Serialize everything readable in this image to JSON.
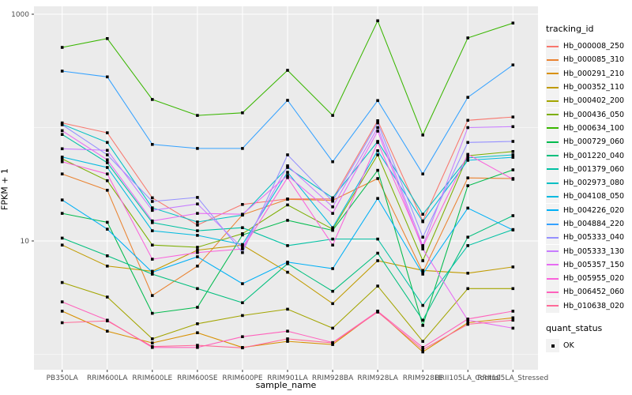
{
  "chart_data": {
    "type": "line",
    "title": "",
    "xlabel": "sample_name",
    "ylabel": "FPKM + 1",
    "y_scale": "log10",
    "ylim": [
      1,
      1000
    ],
    "y_ticks": [
      {
        "label": "1000",
        "value": 1000
      },
      {
        "label": "10",
        "value": 10
      }
    ],
    "y_minor_ticks": [
      100,
      1
    ],
    "grid": "on",
    "panel_bg": "#EBEBEB",
    "grid_color": "#FFFFFF",
    "tick_label_color": "#4D4D4D",
    "point_marker": "filled-black-square",
    "point_color": "#000000",
    "legend_title": "tracking_id",
    "legend_position": "right",
    "quant_legend": {
      "title": "quant_status",
      "entries": [
        {
          "label": "OK",
          "marker": "black-square"
        }
      ]
    },
    "categories": [
      "PB350LA",
      "RRIM600LA",
      "RRIM600LE",
      "RRIM600SE",
      "RRIM600PE",
      "RRIM901LA",
      "RRIM928BA",
      "RRIM928LA",
      "RRIM928LE",
      "RRII105LA_Control",
      "RRII105LA_Stressed"
    ],
    "series": [
      {
        "id": "Hb_000008_250",
        "color": "#F8766D",
        "values": [
          110,
          90,
          24,
          13.8,
          21,
          23.5,
          23.5,
          115,
          15,
          116,
          124
        ]
      },
      {
        "id": "Hb_000085_310",
        "color": "#EA8331",
        "values": [
          39,
          28,
          3.3,
          6,
          17,
          23.3,
          22.8,
          35.5,
          5.3,
          36,
          35.5
        ]
      },
      {
        "id": "Hb_000291_210",
        "color": "#D89000",
        "values": [
          2.4,
          1.6,
          1.26,
          1.55,
          1.15,
          1.3,
          1.22,
          2.4,
          1.05,
          1.9,
          2.1
        ]
      },
      {
        "id": "Hb_000352_110",
        "color": "#C09B00",
        "values": [
          9.2,
          6,
          5.4,
          8.3,
          9.2,
          5.3,
          2.8,
          6.7,
          5.5,
          5.2,
          5.9
        ]
      },
      {
        "id": "Hb_000402_200",
        "color": "#A3A500",
        "values": [
          4.3,
          3.2,
          1.37,
          1.86,
          2.2,
          2.5,
          1.7,
          4,
          1.3,
          3.8,
          3.8
        ]
      },
      {
        "id": "Hb_000436_050",
        "color": "#7CAE00",
        "values": [
          53,
          34,
          9.2,
          8.8,
          11.6,
          20.8,
          12.7,
          57.5,
          6.7,
          56.5,
          61.5
        ]
      },
      {
        "id": "Hb_000634_100",
        "color": "#39B600",
        "values": [
          510,
          610,
          177,
          128,
          135,
          320,
          128,
          875,
          86,
          618,
          835
        ]
      },
      {
        "id": "Hb_000729_060",
        "color": "#00BB4E",
        "values": [
          17.5,
          14.6,
          2.3,
          2.6,
          11.3,
          15.2,
          12.4,
          42,
          1.8,
          30.7,
          42.4
        ]
      },
      {
        "id": "Hb_001220_040",
        "color": "#00BF7D",
        "values": [
          10.6,
          7.4,
          5.1,
          3.8,
          2.85,
          6.3,
          3.6,
          7.8,
          2,
          10.8,
          16.7
        ]
      },
      {
        "id": "Hb_001379_060",
        "color": "#00C1A3",
        "values": [
          87,
          49,
          14.5,
          12.3,
          13.1,
          9.1,
          10.4,
          10.4,
          2.7,
          9.1,
          12.6
        ]
      },
      {
        "id": "Hb_002973_080",
        "color": "#00BFC4",
        "values": [
          107,
          74,
          19.6,
          14.7,
          16.9,
          44.5,
          24,
          75.5,
          17.2,
          54,
          57.5
        ]
      },
      {
        "id": "Hb_004108_050",
        "color": "#00BAE0",
        "values": [
          55,
          44.5,
          12.3,
          11.2,
          9.3,
          40.3,
          13.1,
          62.5,
          14.8,
          51.5,
          54.7
        ]
      },
      {
        "id": "Hb_004226_020",
        "color": "#00B0F6",
        "values": [
          23,
          12.7,
          5.3,
          7.25,
          4.2,
          6.5,
          5.7,
          23.7,
          5.1,
          19.5,
          12.5
        ]
      },
      {
        "id": "Hb_004884_220",
        "color": "#35A2FF",
        "values": [
          315,
          280,
          71,
          65.5,
          65.5,
          174,
          50,
          173,
          39,
          185,
          357
        ]
      },
      {
        "id": "Hb_005333_040",
        "color": "#9590FF",
        "values": [
          106,
          57.5,
          22.3,
          24.2,
          7.9,
          57.5,
          22.4,
          110,
          10.8,
          74,
          75.5
        ]
      },
      {
        "id": "Hb_005333_130",
        "color": "#C77CFF",
        "values": [
          65,
          63,
          18.6,
          21.2,
          8.7,
          46,
          20,
          100,
          9.1,
          100,
          102
        ]
      },
      {
        "id": "Hb_005357_150",
        "color": "#E76BF3",
        "values": [
          94,
          52,
          15,
          17.5,
          17.2,
          37.8,
          17.5,
          93,
          8.5,
          2,
          1.7
        ]
      },
      {
        "id": "Hb_005955_020",
        "color": "#FA62DB",
        "values": [
          50,
          39,
          6.9,
          7.9,
          8.5,
          36.2,
          9.2,
          74,
          8.9,
          58,
          35
        ]
      },
      {
        "id": "Hb_006452_060",
        "color": "#FF62BC",
        "values": [
          2.9,
          2,
          1.15,
          1.15,
          1.43,
          1.6,
          1.27,
          2.4,
          1.15,
          2.05,
          2.4
        ]
      },
      {
        "id": "Hb_010638_020",
        "color": "#FF6A98",
        "values": [
          1.9,
          1.97,
          1.17,
          1.2,
          1.14,
          1.37,
          1.26,
          2.36,
          1.1,
          1.84,
          2
        ]
      }
    ]
  }
}
